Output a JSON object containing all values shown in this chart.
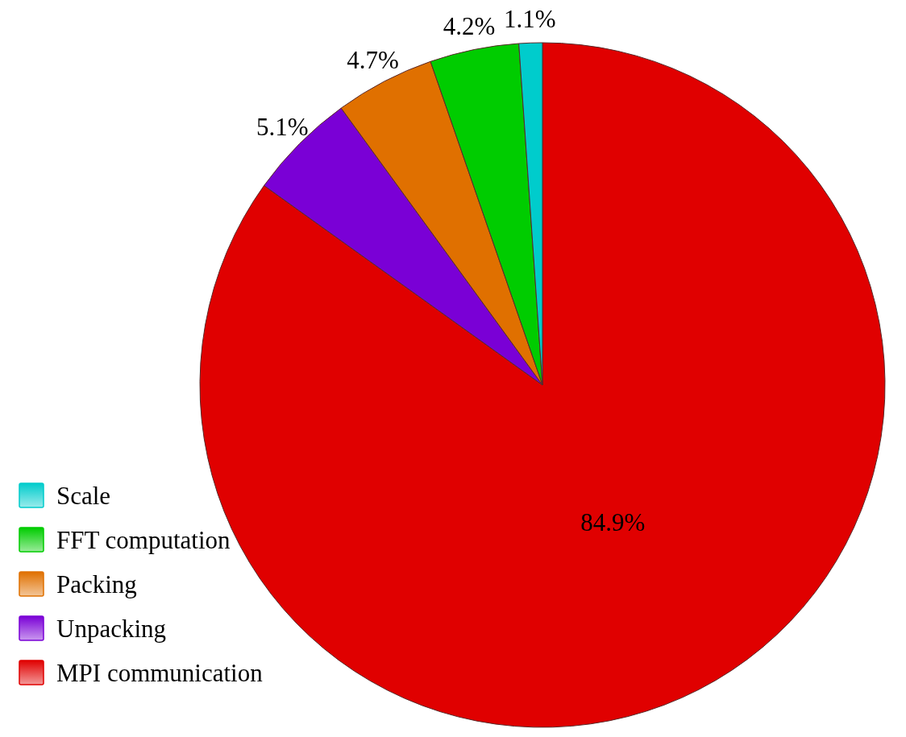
{
  "chart_data": {
    "type": "pie",
    "categories": [
      "MPI communication",
      "Unpacking",
      "Packing",
      "FFT computation",
      "Scale"
    ],
    "values": [
      84.9,
      5.1,
      4.7,
      4.2,
      1.1
    ],
    "colors": [
      "#e00000",
      "#7a00d6",
      "#e07000",
      "#00cc00",
      "#00cccc"
    ],
    "value_labels": [
      "84.9%",
      "5.1%",
      "4.7%",
      "4.2%",
      "1.1%"
    ],
    "legend": "bottom left"
  }
}
